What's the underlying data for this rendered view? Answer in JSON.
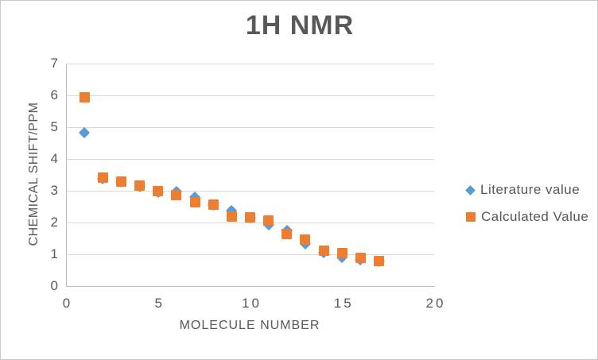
{
  "title": "1H NMR",
  "colors": {
    "literature_blue": "#5B9BD5",
    "calculated_orange": "#ED7D31",
    "text_gray": "#595959",
    "gridline_gray": "#D9D9D9",
    "axis_gray": "#BFBFBF"
  },
  "chart_data": {
    "type": "scatter",
    "title": "1H NMR",
    "xlabel": "MOLECULE NUMBER",
    "ylabel": "CHEMICAL SHIFT/PPM",
    "xlim": [
      0,
      20
    ],
    "ylim": [
      0,
      7
    ],
    "x_ticks": [
      0,
      5,
      10,
      15,
      20
    ],
    "y_ticks": [
      0,
      1,
      2,
      3,
      4,
      5,
      6,
      7
    ],
    "grid": "horizontal",
    "legend_position": "right",
    "x": [
      1,
      2,
      3,
      4,
      5,
      6,
      7,
      8,
      9,
      10,
      11,
      12,
      13,
      14,
      15,
      16,
      17
    ],
    "series": [
      {
        "name": "Literature value",
        "marker": "diamond",
        "color": "#5B9BD5",
        "values": [
          4.82,
          3.38,
          3.28,
          3.12,
          2.95,
          2.97,
          2.8,
          2.55,
          2.37,
          2.15,
          1.93,
          1.75,
          1.33,
          1.05,
          0.9,
          0.82,
          0.78
        ]
      },
      {
        "name": "Calculated Value",
        "marker": "square",
        "color": "#ED7D31",
        "values": [
          5.95,
          3.42,
          3.3,
          3.17,
          3.0,
          2.87,
          2.63,
          2.57,
          2.2,
          2.17,
          2.06,
          1.63,
          1.47,
          1.12,
          1.05,
          0.88,
          0.8
        ]
      }
    ]
  }
}
